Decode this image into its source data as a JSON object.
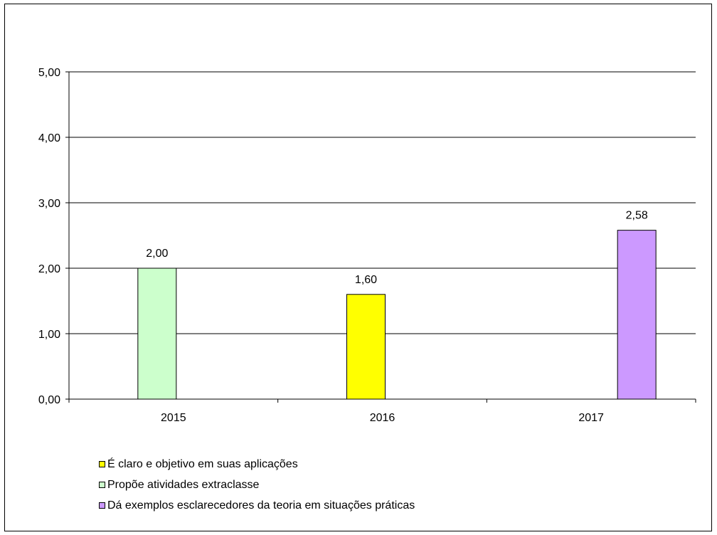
{
  "chart_data": {
    "type": "bar",
    "categories": [
      "2015",
      "2016",
      "2017"
    ],
    "ylim": [
      0,
      5
    ],
    "yticks": [
      "0,00",
      "1,00",
      "2,00",
      "3,00",
      "4,00",
      "5,00"
    ],
    "grid": true,
    "legend_position": "bottom-left",
    "series": [
      {
        "name": "É claro e objetivo em suas aplicações",
        "color": "#ffff00",
        "values": [
          null,
          1.6,
          null
        ],
        "labels": [
          "",
          "1,60",
          ""
        ]
      },
      {
        "name": "Propõe atividades extraclasse",
        "color": "#ccffcc",
        "values": [
          2.0,
          null,
          null
        ],
        "labels": [
          "2,00",
          "",
          ""
        ]
      },
      {
        "name": "Dá exemplos esclarecedores da teoria em situações práticas",
        "color": "#cc99ff",
        "values": [
          null,
          null,
          2.58
        ],
        "labels": [
          "",
          "",
          "2,58"
        ]
      }
    ]
  }
}
